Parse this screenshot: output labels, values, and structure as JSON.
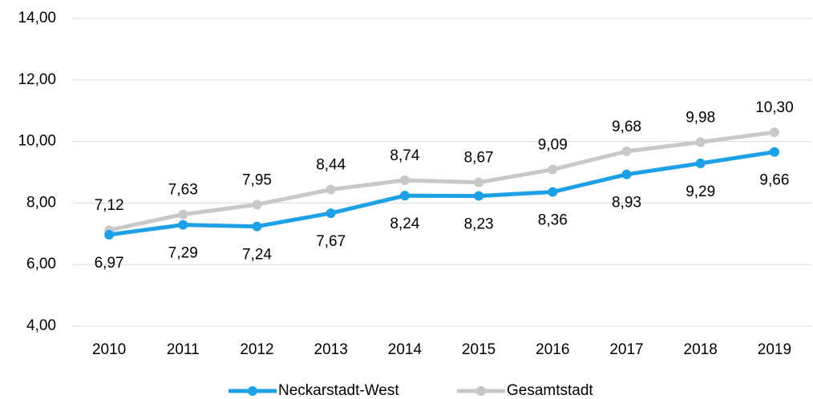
{
  "chart_data": {
    "type": "line",
    "categories": [
      "2010",
      "2011",
      "2012",
      "2013",
      "2014",
      "2015",
      "2016",
      "2017",
      "2018",
      "2019"
    ],
    "series": [
      {
        "name": "Neckarstadt-West",
        "color": "#1ea0e6",
        "values": [
          6.97,
          7.29,
          7.24,
          7.67,
          8.24,
          8.23,
          8.36,
          8.93,
          9.29,
          9.66
        ],
        "value_labels": [
          "6,97",
          "7,29",
          "7,24",
          "7,67",
          "8,24",
          "8,23",
          "8,36",
          "8,93",
          "9,29",
          "9,66"
        ]
      },
      {
        "name": "Gesamtstadt",
        "color": "#c8c8c8",
        "values": [
          7.12,
          7.63,
          7.95,
          8.44,
          8.74,
          8.67,
          9.09,
          9.68,
          9.98,
          10.3
        ],
        "value_labels": [
          "7,12",
          "7,63",
          "7,95",
          "8,44",
          "8,74",
          "8,67",
          "9,09",
          "9,68",
          "9,98",
          "10,30"
        ]
      }
    ],
    "ylim": [
      4,
      14
    ],
    "yticks": [
      {
        "value": 4,
        "label": "4,00"
      },
      {
        "value": 6,
        "label": "6,00"
      },
      {
        "value": 8,
        "label": "8,00"
      },
      {
        "value": 10,
        "label": "10,00"
      },
      {
        "value": 12,
        "label": "12,00"
      },
      {
        "value": 14,
        "label": "14,00"
      }
    ],
    "grid": true,
    "legend": "bottom"
  }
}
